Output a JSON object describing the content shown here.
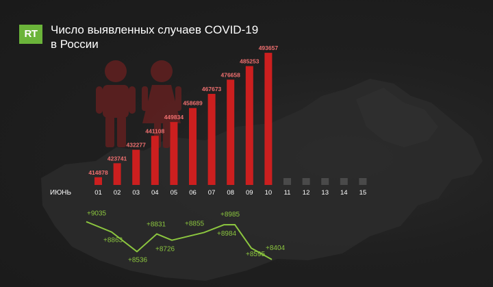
{
  "logo": {
    "text": "RT",
    "color": "#6bb43a"
  },
  "title": {
    "line1": "Число выявленных случаев COVID-19",
    "line2": "в России"
  },
  "colors": {
    "bar": "#cc1f1f",
    "bar_empty": "#4a4a4a",
    "value_text": "#f07070",
    "increment": "#8cc63f",
    "silhouette": "#5e2020"
  },
  "axis_label": "ИЮНЬ",
  "chart_data": [
    {
      "type": "bar",
      "title": "Число выявленных случаев COVID-19 в России",
      "categories": [
        "01",
        "02",
        "03",
        "04",
        "05",
        "06",
        "07",
        "08",
        "09",
        "10",
        "11",
        "12",
        "13",
        "14",
        "15"
      ],
      "values": [
        414878,
        423741,
        432277,
        441108,
        449834,
        458689,
        467673,
        476658,
        485253,
        493657,
        null,
        null,
        null,
        null,
        null
      ],
      "xlabel": "ИЮНЬ",
      "ylabel": "",
      "ylim": [
        410000,
        495000
      ]
    },
    {
      "type": "line",
      "x": [
        "01",
        "02",
        "03",
        "04",
        "05",
        "06",
        "07",
        "08",
        "09",
        "10"
      ],
      "values": [
        9035,
        8863,
        8536,
        8831,
        8726,
        8855,
        8984,
        8985,
        8595,
        8404
      ],
      "labels": [
        "+9035",
        "+8863",
        "+8536",
        "+8831",
        "+8726",
        "+8855",
        "+8984",
        "+8985",
        "+8595",
        "+8404"
      ],
      "ylim": [
        8300,
        9100
      ]
    }
  ]
}
